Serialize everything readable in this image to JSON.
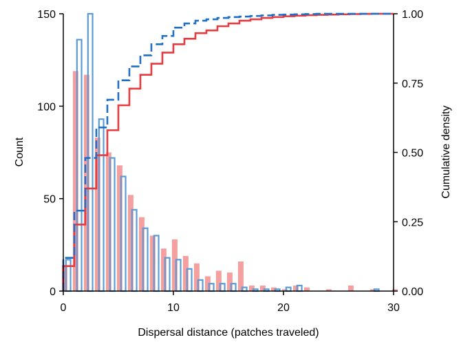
{
  "chart_data": {
    "type": "bar",
    "xlabel": "Dispersal distance (patches traveled)",
    "ylabel": "Count",
    "ylabel_right": "Cumulative density",
    "xlim": [
      0,
      30
    ],
    "ylim": [
      0,
      150
    ],
    "ylim_right": [
      0,
      1
    ],
    "x_ticks": [
      "0",
      "10",
      "20",
      "30"
    ],
    "x_tick_values": [
      0,
      10,
      20,
      30
    ],
    "y_ticks": [
      "0",
      "50",
      "100",
      "150"
    ],
    "y_tick_values": [
      0,
      50,
      100,
      150
    ],
    "y_right_ticks": [
      "0.00",
      "0.25",
      "0.50",
      "0.75",
      "1.00"
    ],
    "y_right_tick_values": [
      0,
      0.25,
      0.5,
      0.75,
      1
    ],
    "grid": false,
    "legend": "none",
    "colors": {
      "series_a_bar": "#f4a0a0",
      "series_a_line": "#e8393f",
      "series_b_bar": "#5b9bd5",
      "series_b_line": "#1f6fc6"
    },
    "histograms": [
      {
        "style": "filled",
        "x": [
          0,
          1,
          2,
          3,
          4,
          5,
          6,
          7,
          8,
          9,
          10,
          11,
          12,
          13,
          14,
          15,
          16,
          17,
          18,
          19,
          20,
          21,
          22,
          23,
          24,
          25,
          26,
          27,
          28,
          29,
          30
        ],
        "counts": [
          14,
          119,
          117,
          83,
          75,
          68,
          52,
          40,
          30,
          23,
          28,
          19,
          15,
          8,
          11,
          10,
          16,
          3,
          3,
          2,
          1,
          3,
          2,
          0,
          1,
          0,
          3,
          0,
          1,
          0,
          1
        ]
      },
      {
        "style": "outline",
        "x": [
          0,
          1,
          2,
          3,
          4,
          5,
          6,
          7,
          8,
          9,
          10,
          11,
          12,
          13,
          14,
          15,
          16,
          17,
          18,
          19,
          20,
          21,
          22,
          23,
          24,
          25,
          26,
          27,
          28,
          29,
          30
        ],
        "counts": [
          17,
          136,
          150,
          93,
          72,
          62,
          44,
          34,
          30,
          18,
          17,
          12,
          6,
          4,
          4,
          4,
          2,
          1,
          1,
          1,
          2,
          3,
          0,
          0,
          0,
          0,
          0,
          0,
          1,
          0,
          0
        ]
      }
    ],
    "cdfs": [
      {
        "style": "solid",
        "x": [
          0,
          1,
          2,
          3,
          4,
          5,
          6,
          7,
          8,
          9,
          10,
          11,
          12,
          13,
          14,
          15,
          16,
          17,
          18,
          19,
          20,
          21,
          22,
          23,
          24,
          25,
          26,
          27,
          28,
          29,
          30
        ],
        "y": [
          0.09,
          0.24,
          0.37,
          0.49,
          0.58,
          0.67,
          0.73,
          0.78,
          0.82,
          0.86,
          0.89,
          0.91,
          0.93,
          0.94,
          0.955,
          0.965,
          0.975,
          0.98,
          0.985,
          0.988,
          0.991,
          0.993,
          0.995,
          0.996,
          0.997,
          0.998,
          0.999,
          0.9995,
          1.0,
          1.0,
          1.0
        ]
      },
      {
        "style": "dashed",
        "x": [
          0,
          1,
          2,
          3,
          4,
          5,
          6,
          7,
          8,
          9,
          10,
          11,
          12,
          13,
          14,
          15,
          16,
          17,
          18,
          19,
          20,
          21,
          22,
          23,
          24,
          25,
          26,
          27,
          28,
          29,
          30
        ],
        "y": [
          0.12,
          0.29,
          0.48,
          0.59,
          0.69,
          0.76,
          0.81,
          0.85,
          0.89,
          0.92,
          0.95,
          0.965,
          0.975,
          0.98,
          0.985,
          0.988,
          0.99,
          0.992,
          0.994,
          0.996,
          0.997,
          0.998,
          0.999,
          1.0,
          1.0,
          1.0,
          1.0,
          1.0,
          1.0,
          1.0,
          1.0
        ]
      }
    ]
  }
}
